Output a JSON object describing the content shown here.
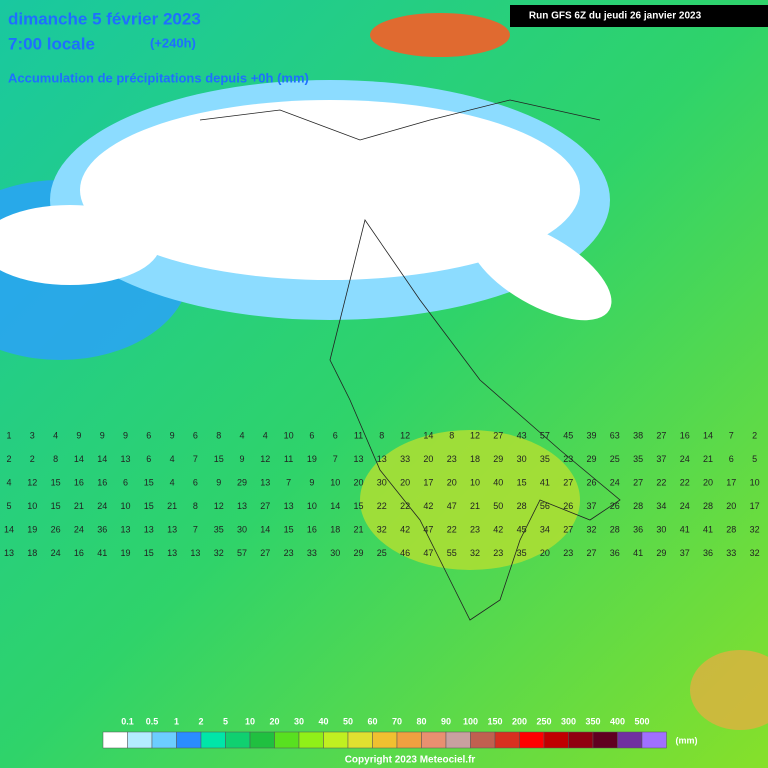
{
  "header": {
    "title": "dimanche 5 février 2023",
    "time": "7:00 locale",
    "lead": "(+240h)",
    "subtitle": "Accumulation de précipitations depuis +0h (mm)",
    "run": "Run GFS 6Z du jeudi 26 janvier 2023"
  },
  "grid_rows": [
    [
      "1",
      "3",
      "4",
      "9",
      "9",
      "9",
      "6",
      "9",
      "6",
      "8",
      "4",
      "4",
      "10",
      "6",
      "6",
      "11",
      "8",
      "12",
      "14",
      "8",
      "12",
      "27",
      "43",
      "57",
      "45",
      "39",
      "63",
      "38",
      "27",
      "16",
      "14",
      "7",
      "2"
    ],
    [
      "2",
      "2",
      "8",
      "14",
      "14",
      "13",
      "6",
      "4",
      "7",
      "15",
      "9",
      "12",
      "11",
      "19",
      "7",
      "13",
      "13",
      "33",
      "20",
      "23",
      "18",
      "29",
      "30",
      "35",
      "23",
      "29",
      "25",
      "35",
      "37",
      "24",
      "21",
      "6",
      "5"
    ],
    [
      "4",
      "12",
      "15",
      "16",
      "16",
      "6",
      "15",
      "4",
      "6",
      "9",
      "29",
      "13",
      "7",
      "9",
      "10",
      "20",
      "30",
      "20",
      "17",
      "20",
      "10",
      "40",
      "15",
      "41",
      "27",
      "26",
      "24",
      "27",
      "22",
      "22",
      "20",
      "17",
      "10"
    ],
    [
      "5",
      "10",
      "15",
      "21",
      "24",
      "10",
      "15",
      "21",
      "8",
      "12",
      "13",
      "27",
      "13",
      "10",
      "14",
      "15",
      "22",
      "22",
      "42",
      "47",
      "21",
      "50",
      "28",
      "56",
      "26",
      "37",
      "26",
      "28",
      "34",
      "24",
      "28",
      "20",
      "17"
    ],
    [
      "14",
      "19",
      "26",
      "24",
      "36",
      "13",
      "13",
      "13",
      "7",
      "35",
      "30",
      "14",
      "15",
      "16",
      "18",
      "21",
      "32",
      "42",
      "47",
      "22",
      "23",
      "42",
      "45",
      "34",
      "27",
      "32",
      "28",
      "36",
      "30",
      "41",
      "41",
      "28",
      "32"
    ],
    [
      "13",
      "18",
      "24",
      "16",
      "41",
      "19",
      "15",
      "13",
      "13",
      "32",
      "57",
      "27",
      "23",
      "33",
      "30",
      "29",
      "25",
      "46",
      "47",
      "55",
      "32",
      "23",
      "35",
      "20",
      "23",
      "27",
      "36",
      "41",
      "29",
      "37",
      "36",
      "33",
      "32"
    ]
  ],
  "legend": {
    "labels": [
      "0.1",
      "0.5",
      "1",
      "2",
      "5",
      "10",
      "20",
      "30",
      "40",
      "50",
      "60",
      "70",
      "80",
      "90",
      "100",
      "150",
      "200",
      "250",
      "300",
      "350",
      "400",
      "500"
    ],
    "colors": [
      "#ffffff",
      "#b4ecff",
      "#6ccdff",
      "#2a8cff",
      "#00e6a8",
      "#10d070",
      "#20c040",
      "#58e020",
      "#90f018",
      "#c0f020",
      "#e0e030",
      "#f0c030",
      "#f0a040",
      "#e89070",
      "#c8a0a0",
      "#c06050",
      "#d83020",
      "#ff0000",
      "#c00000",
      "#900010",
      "#600020",
      "#7030a0",
      "#a070ff"
    ],
    "unit": "(mm)"
  },
  "copyright": "Copyright 2023 Meteociel.fr"
}
